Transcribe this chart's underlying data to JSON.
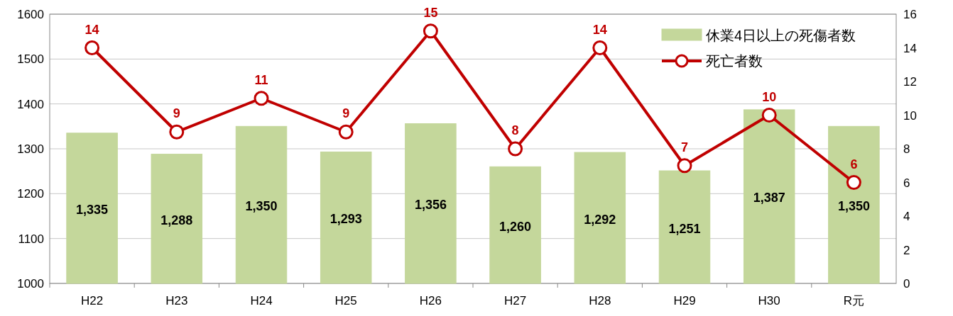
{
  "chart_data": {
    "type": "bar",
    "categories": [
      "H22",
      "H23",
      "H24",
      "H25",
      "H26",
      "H27",
      "H28",
      "H29",
      "H30",
      "R元"
    ],
    "series": [
      {
        "name": "休業4日以上の死傷者数",
        "color": "#c4d79b",
        "values": [
          1335,
          1288,
          1350,
          1293,
          1356,
          1260,
          1292,
          1251,
          1387,
          1350
        ],
        "value_labels": [
          "1,335",
          "1,288",
          "1,350",
          "1,293",
          "1,356",
          "1,260",
          "1,292",
          "1,251",
          "1,387",
          "1,350"
        ]
      },
      {
        "name": "死亡者数",
        "type": "line",
        "axis": "y2",
        "color": "#c00000",
        "marker": "circle",
        "values": [
          14,
          9,
          11,
          9,
          15,
          8,
          14,
          7,
          10,
          6
        ]
      }
    ],
    "ylim": [
      1000,
      1600
    ],
    "yticks": [
      1000,
      1100,
      1200,
      1300,
      1400,
      1500,
      1600
    ],
    "y2lim": [
      0,
      16
    ],
    "y2ticks": [
      0,
      2,
      4,
      6,
      8,
      10,
      12,
      14,
      16
    ],
    "data_labels": true,
    "grid": "y",
    "legend": "top right"
  }
}
